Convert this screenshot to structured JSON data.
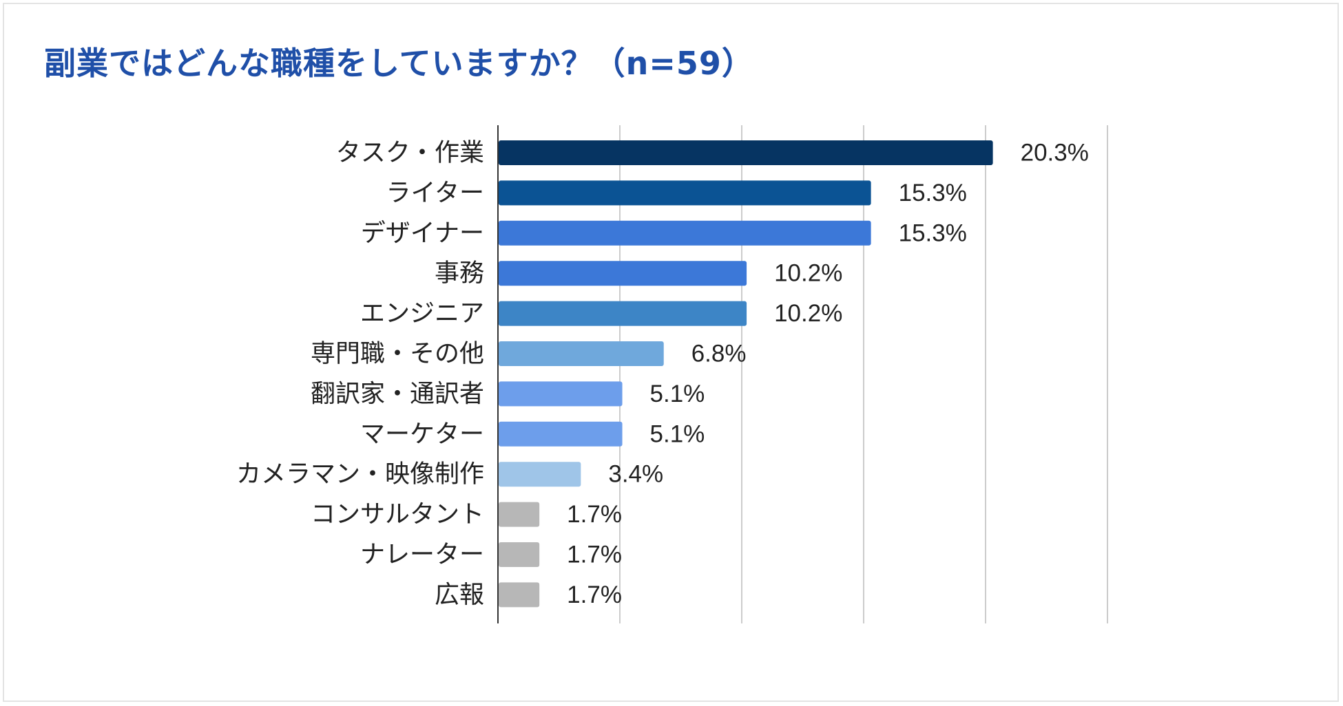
{
  "chart_data": {
    "type": "bar",
    "orientation": "horizontal",
    "title": "副業ではどんな職種をしていますか？（n=59）",
    "categories": [
      "タスク・作業",
      "ライター",
      "デザイナー",
      "事務",
      "エンジニア",
      "専門職・その他",
      "翻訳家・通訳者",
      "マーケター",
      "カメラマン・映像制作",
      "コンサルタント",
      "ナレーター",
      "広報"
    ],
    "values": [
      20.3,
      15.3,
      15.3,
      10.2,
      10.2,
      6.8,
      5.1,
      5.1,
      3.4,
      1.7,
      1.7,
      1.7
    ],
    "value_labels": [
      "20.3%",
      "15.3%",
      "15.3%",
      "10.2%",
      "10.2%",
      "6.8%",
      "5.1%",
      "5.1%",
      "3.4%",
      "1.7%",
      "1.7%",
      "1.7%"
    ],
    "colors": [
      "#063462",
      "#0b5394",
      "#3c78d8",
      "#3c78d8",
      "#3d85c6",
      "#6fa8dc",
      "#6d9eeb",
      "#6d9eeb",
      "#9fc5e8",
      "#b7b7b7",
      "#b7b7b7",
      "#b7b7b7"
    ],
    "xlim": [
      0,
      25
    ],
    "gridlines": [
      0,
      5,
      10,
      15,
      20,
      25
    ],
    "grid": true,
    "legend": "none",
    "xlabel": "",
    "ylabel": ""
  }
}
